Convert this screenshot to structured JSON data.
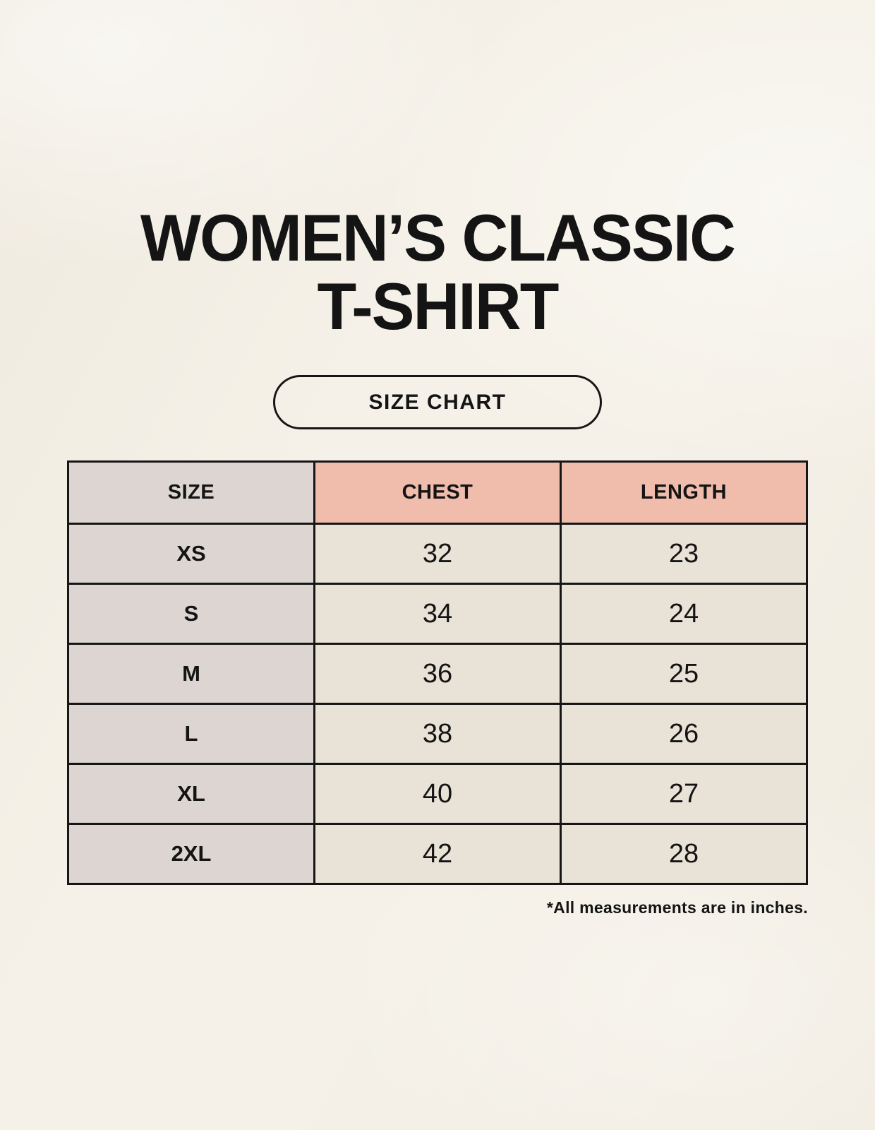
{
  "header": {
    "title_line1": "WOMEN’S CLASSIC",
    "title_line2": "T-SHIRT",
    "size_chart_label": "SIZE CHART"
  },
  "chart_data": {
    "type": "table",
    "title": "WOMEN’S CLASSIC T-SHIRT",
    "subtitle": "SIZE CHART",
    "columns": [
      "SIZE",
      "CHEST",
      "LENGTH"
    ],
    "rows": [
      [
        "XS",
        "32",
        "23"
      ],
      [
        "S",
        "34",
        "24"
      ],
      [
        "M",
        "36",
        "25"
      ],
      [
        "L",
        "38",
        "26"
      ],
      [
        "XL",
        "40",
        "27"
      ],
      [
        "2XL",
        "42",
        "28"
      ]
    ],
    "footnote": "*All measurements are in inches.",
    "units": "inches"
  },
  "colors": {
    "background": "#f5f1e8",
    "size_column_bg": "#dcd5d1",
    "header_accent_bg": "#f0bcab",
    "value_cell_bg": "#e9e2d6",
    "border": "#161616",
    "text": "#141414"
  }
}
